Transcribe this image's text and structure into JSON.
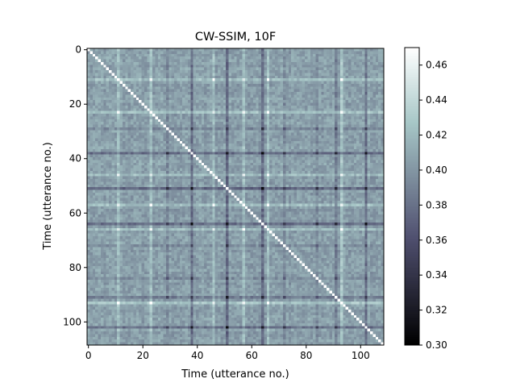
{
  "chart_data": {
    "type": "heatmap",
    "title": "CW-SSIM, 10F",
    "xlabel": "Time (utterance no.)",
    "ylabel": "Time (utterance no.)",
    "n": 109,
    "xlim": [
      0,
      108
    ],
    "ylim": [
      108,
      0
    ],
    "xticks": [
      "0",
      "20",
      "40",
      "60",
      "80",
      "100"
    ],
    "yticks": [
      "0",
      "20",
      "40",
      "60",
      "80",
      "100"
    ],
    "colorbar": {
      "range": [
        0.3,
        0.47
      ],
      "ticks": [
        "0.30",
        "0.32",
        "0.34",
        "0.36",
        "0.38",
        "0.40",
        "0.42",
        "0.44",
        "0.46"
      ],
      "colormap": "bone"
    },
    "diagonal_value": 1.0,
    "background_value": 0.405,
    "dark_indices": [
      {
        "index": 38,
        "value": 0.35
      },
      {
        "index": 51,
        "value": 0.345
      },
      {
        "index": 64,
        "value": 0.35
      },
      {
        "index": 102,
        "value": 0.355
      },
      {
        "index": 91,
        "value": 0.37
      },
      {
        "index": 29,
        "value": 0.38
      },
      {
        "index": 72,
        "value": 0.385
      },
      {
        "index": 84,
        "value": 0.385
      }
    ],
    "light_indices": [
      {
        "index": 11,
        "value": 0.44
      },
      {
        "index": 23,
        "value": 0.445
      },
      {
        "index": 46,
        "value": 0.44
      },
      {
        "index": 57,
        "value": 0.44
      },
      {
        "index": 66,
        "value": 0.44
      },
      {
        "index": 93,
        "value": 0.45
      }
    ]
  }
}
